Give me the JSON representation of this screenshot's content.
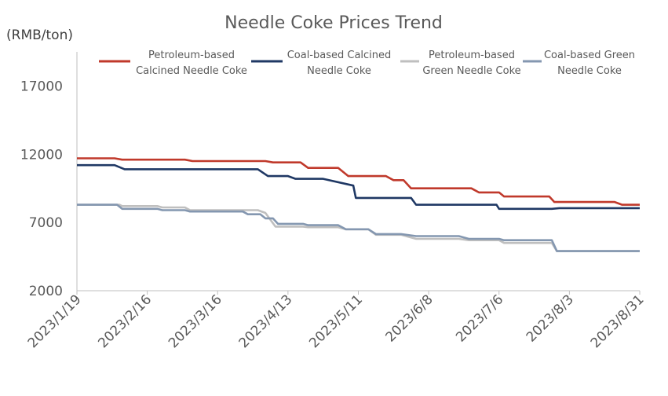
{
  "chart_data": {
    "type": "line",
    "title": "Needle Coke Prices Trend",
    "ylabel": "(RMB/ton)",
    "xlabel": "",
    "ylim": [
      2000,
      19500
    ],
    "yticks": [
      "2000",
      "7000",
      "12000",
      "17000"
    ],
    "xticks": [
      "2023/1/19",
      "2023/2/16",
      "2023/3/16",
      "2023/4/13",
      "2023/5/11",
      "2023/6/8",
      "2023/7/6",
      "2023/8/3",
      "2023/8/31"
    ],
    "x_range": [
      "2023-01-19",
      "2023-08-31"
    ],
    "grid": false,
    "legend_position": "top",
    "series": [
      {
        "name": "Petroleum-based Calcined Needle Coke",
        "legend_lines": [
          "Petroleum-based",
          "Calcined Needle Coke"
        ],
        "color": "#c0392b",
        "points": [
          [
            "2023-01-19",
            11700
          ],
          [
            "2023-02-03",
            11700
          ],
          [
            "2023-02-06",
            11600
          ],
          [
            "2023-03-03",
            11600
          ],
          [
            "2023-03-06",
            11500
          ],
          [
            "2023-04-04",
            11500
          ],
          [
            "2023-04-07",
            11400
          ],
          [
            "2023-04-18",
            11400
          ],
          [
            "2023-04-21",
            11000
          ],
          [
            "2023-05-03",
            11000
          ],
          [
            "2023-05-07",
            10400
          ],
          [
            "2023-05-22",
            10400
          ],
          [
            "2023-05-25",
            10100
          ],
          [
            "2023-05-29",
            10100
          ],
          [
            "2023-06-01",
            9500
          ],
          [
            "2023-06-25",
            9500
          ],
          [
            "2023-06-28",
            9200
          ],
          [
            "2023-07-06",
            9200
          ],
          [
            "2023-07-08",
            8900
          ],
          [
            "2023-07-26",
            8900
          ],
          [
            "2023-07-28",
            8500
          ],
          [
            "2023-08-21",
            8500
          ],
          [
            "2023-08-24",
            8300
          ],
          [
            "2023-08-31",
            8300
          ]
        ]
      },
      {
        "name": "Coal-based Calcined Needle Coke",
        "legend_lines": [
          "Coal-based Calcined",
          "Needle Coke"
        ],
        "color": "#1f3864",
        "points": [
          [
            "2023-01-19",
            11200
          ],
          [
            "2023-02-03",
            11200
          ],
          [
            "2023-02-07",
            10900
          ],
          [
            "2023-04-01",
            10900
          ],
          [
            "2023-04-05",
            10400
          ],
          [
            "2023-04-13",
            10400
          ],
          [
            "2023-04-16",
            10200
          ],
          [
            "2023-04-27",
            10200
          ],
          [
            "2023-05-09",
            9700
          ],
          [
            "2023-05-10",
            8800
          ],
          [
            "2023-06-01",
            8800
          ],
          [
            "2023-06-03",
            8300
          ],
          [
            "2023-07-05",
            8300
          ],
          [
            "2023-07-06",
            8000
          ],
          [
            "2023-07-27",
            8000
          ],
          [
            "2023-07-30",
            8050
          ],
          [
            "2023-08-31",
            8050
          ]
        ]
      },
      {
        "name": "Petroleum-based Green Needle Coke",
        "legend_lines": [
          "Petroleum-based",
          "Green Needle Coke"
        ],
        "color": "#bfbfbf",
        "points": [
          [
            "2023-01-19",
            8300
          ],
          [
            "2023-02-05",
            8300
          ],
          [
            "2023-02-06",
            8200
          ],
          [
            "2023-02-20",
            8200
          ],
          [
            "2023-02-22",
            8100
          ],
          [
            "2023-03-03",
            8100
          ],
          [
            "2023-03-05",
            7900
          ],
          [
            "2023-04-01",
            7900
          ],
          [
            "2023-04-04",
            7700
          ],
          [
            "2023-04-08",
            6700
          ],
          [
            "2023-04-19",
            6700
          ],
          [
            "2023-04-21",
            6650
          ],
          [
            "2023-05-03",
            6650
          ],
          [
            "2023-05-06",
            6500
          ],
          [
            "2023-05-15",
            6500
          ],
          [
            "2023-05-18",
            6100
          ],
          [
            "2023-05-28",
            6100
          ],
          [
            "2023-06-03",
            5800
          ],
          [
            "2023-06-20",
            5800
          ],
          [
            "2023-06-24",
            5700
          ],
          [
            "2023-07-06",
            5700
          ],
          [
            "2023-07-08",
            5500
          ],
          [
            "2023-07-27",
            5500
          ],
          [
            "2023-07-29",
            4900
          ],
          [
            "2023-08-31",
            4900
          ]
        ]
      },
      {
        "name": "Coal-based Green Needle Coke",
        "legend_lines": [
          "Coal-based Green",
          "Needle Coke"
        ],
        "color": "#8497b0",
        "points": [
          [
            "2023-01-19",
            8300
          ],
          [
            "2023-02-04",
            8300
          ],
          [
            "2023-02-06",
            8000
          ],
          [
            "2023-02-20",
            8000
          ],
          [
            "2023-02-22",
            7900
          ],
          [
            "2023-03-03",
            7900
          ],
          [
            "2023-03-05",
            7800
          ],
          [
            "2023-03-26",
            7800
          ],
          [
            "2023-03-28",
            7600
          ],
          [
            "2023-04-02",
            7600
          ],
          [
            "2023-04-04",
            7300
          ],
          [
            "2023-04-07",
            7300
          ],
          [
            "2023-04-09",
            6900
          ],
          [
            "2023-04-19",
            6900
          ],
          [
            "2023-04-21",
            6800
          ],
          [
            "2023-05-03",
            6800
          ],
          [
            "2023-05-06",
            6500
          ],
          [
            "2023-05-15",
            6500
          ],
          [
            "2023-05-18",
            6150
          ],
          [
            "2023-05-28",
            6150
          ],
          [
            "2023-06-03",
            6000
          ],
          [
            "2023-06-20",
            6000
          ],
          [
            "2023-06-24",
            5800
          ],
          [
            "2023-07-06",
            5800
          ],
          [
            "2023-07-08",
            5700
          ],
          [
            "2023-07-27",
            5700
          ],
          [
            "2023-07-29",
            4900
          ],
          [
            "2023-08-31",
            4900
          ]
        ]
      }
    ]
  }
}
